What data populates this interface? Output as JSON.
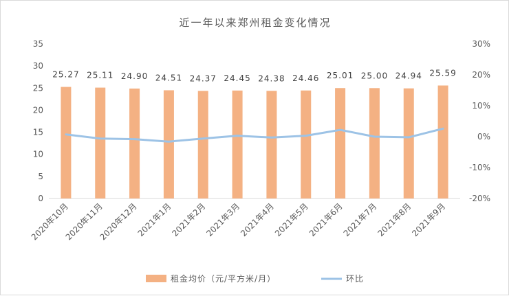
{
  "chart_data": {
    "type": "bar",
    "title": "近一年以来郑州租金变化情况",
    "categories": [
      "2020年10月",
      "2020年11月",
      "2020年12月",
      "2021年1月",
      "2021年2月",
      "2021年3月",
      "2021年4月",
      "2021年5月",
      "2021年6月",
      "2021年7月",
      "2021年8月",
      "2021年9月"
    ],
    "series": [
      {
        "name": "租金均价（元/平方米/月）",
        "type": "bar",
        "axis": "left",
        "color": "#F4B183",
        "values": [
          25.27,
          25.11,
          24.9,
          24.51,
          24.37,
          24.45,
          24.38,
          24.46,
          25.01,
          25.0,
          24.94,
          25.59
        ],
        "labels": [
          "25.27",
          "25.11",
          "24.90",
          "24.51",
          "24.37",
          "24.45",
          "24.38",
          "24.46",
          "25.01",
          "25.00",
          "24.94",
          "25.59"
        ]
      },
      {
        "name": "环比",
        "type": "line",
        "axis": "right",
        "color": "#9DC3E6",
        "values": [
          0.007,
          -0.006,
          -0.008,
          -0.016,
          -0.006,
          0.003,
          -0.003,
          0.003,
          0.022,
          0.0,
          -0.002,
          0.026
        ]
      }
    ],
    "y_left": {
      "ticks": [
        "0",
        "5",
        "10",
        "15",
        "20",
        "25",
        "30",
        "35"
      ],
      "ylim": [
        0,
        35
      ]
    },
    "y_right": {
      "ticks": [
        "-20%",
        "-10%",
        "0%",
        "10%",
        "20%",
        "30%"
      ],
      "ylim": [
        -0.2,
        0.3
      ]
    },
    "grid": false,
    "legend_position": "bottom"
  }
}
